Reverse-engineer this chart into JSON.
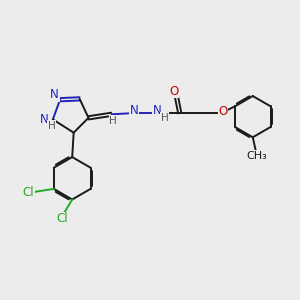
{
  "bg_color": "#ececec",
  "bond_color": "#1a1a1a",
  "N_color": "#2222bb",
  "O_color": "#cc0000",
  "Cl_color": "#22aa22",
  "H_color": "#555555",
  "line_width": 1.4,
  "font_size": 8.5,
  "fig_size": [
    3.0,
    3.0
  ],
  "dpi": 100,
  "xlim": [
    0,
    10
  ],
  "ylim": [
    0,
    10
  ]
}
